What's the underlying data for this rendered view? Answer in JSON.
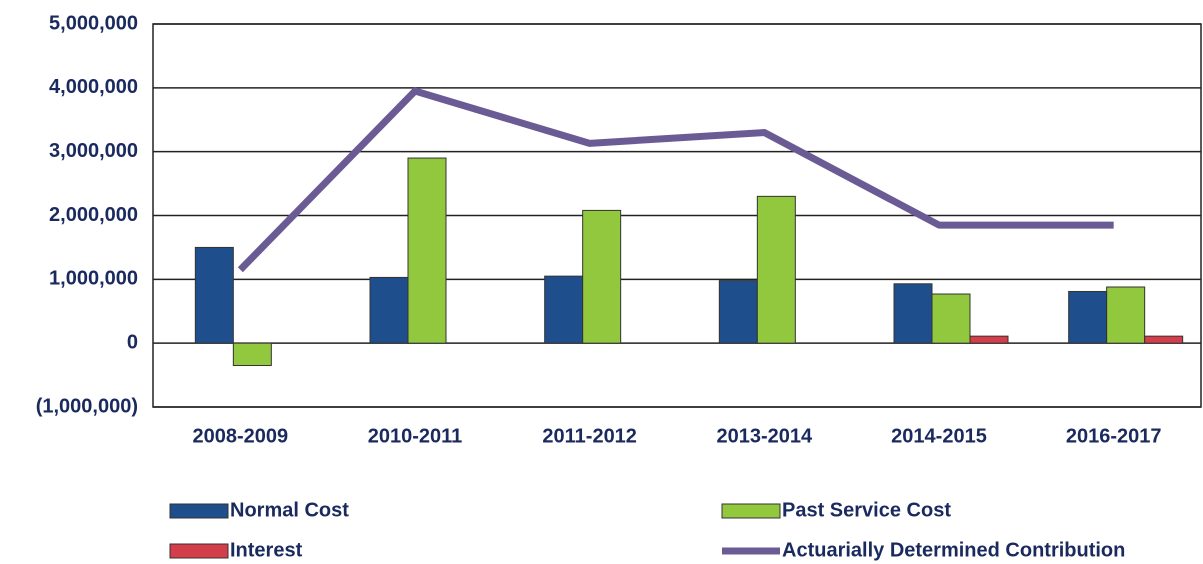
{
  "chart_data": {
    "type": "bar",
    "categories": [
      "2008-2009",
      "2010-2011",
      "2011-2012",
      "2013-2014",
      "2014-2015",
      "2016-2017"
    ],
    "series": [
      {
        "name": "Normal Cost",
        "color": "#1f4e8c",
        "values": [
          1500000,
          1030000,
          1050000,
          980000,
          930000,
          810000
        ]
      },
      {
        "name": "Past Service Cost",
        "color": "#92c83e",
        "values": [
          -350000,
          2900000,
          2080000,
          2300000,
          770000,
          880000
        ]
      },
      {
        "name": "Interest",
        "color": "#d43d4a",
        "values": [
          0,
          0,
          0,
          0,
          110000,
          110000
        ]
      },
      {
        "name": "Actuarially Determined Contribution",
        "color": "#6b5b95",
        "type": "line",
        "values": [
          1150000,
          3950000,
          3130000,
          3300000,
          1850000,
          1850000
        ]
      }
    ],
    "ylim": [
      -1000000,
      5000000
    ],
    "yticks": [
      {
        "value": -1000000,
        "label": "(1,000,000)"
      },
      0,
      {
        "value": 1000000,
        "label": "1,000,000"
      },
      {
        "value": 2000000,
        "label": "2,000,000"
      },
      {
        "value": 3000000,
        "label": "3,000,000"
      },
      {
        "value": 4000000,
        "label": "4,000,000"
      },
      {
        "value": 5000000,
        "label": "5,000,000"
      }
    ],
    "grid": true,
    "legend": "bottom"
  }
}
